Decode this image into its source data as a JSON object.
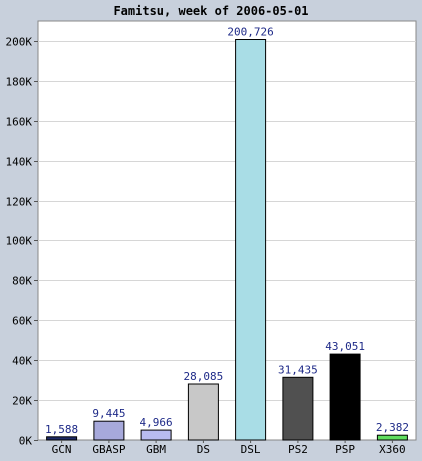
{
  "chart_data": {
    "type": "bar",
    "title": "Famitsu, week of 2006-05-01",
    "xlabel": "",
    "ylabel": "",
    "categories": [
      "GCN",
      "GBASP",
      "GBM",
      "DS",
      "DSL",
      "PS2",
      "PSP",
      "X360"
    ],
    "values": [
      1588,
      9445,
      4966,
      28085,
      200726,
      31435,
      43051,
      2382
    ],
    "value_labels": [
      "1,588",
      "9,445",
      "4,966",
      "28,085",
      "200,726",
      "31,435",
      "43,051",
      "2,382"
    ],
    "bar_colors": [
      "#1e2a66",
      "#a7a9db",
      "#b8bbf0",
      "#c8c8c8",
      "#a9dde6",
      "#505050",
      "#000000",
      "#60dd60"
    ],
    "ylim": [
      0,
      210000
    ],
    "yticks": [
      0,
      20000,
      40000,
      60000,
      80000,
      100000,
      120000,
      140000,
      160000,
      180000,
      200000
    ],
    "ytick_labels": [
      "0K",
      "20K",
      "40K",
      "60K",
      "80K",
      "100K",
      "120K",
      "140K",
      "160K",
      "180K",
      "200K"
    ],
    "grid": true,
    "legend": "none",
    "colors": {
      "background": "#c8d0dc",
      "plot_background": "#ffffff",
      "title_text": "#000000",
      "value_label_text": "#1e2a88",
      "gridline": "#d6d6d6"
    }
  }
}
